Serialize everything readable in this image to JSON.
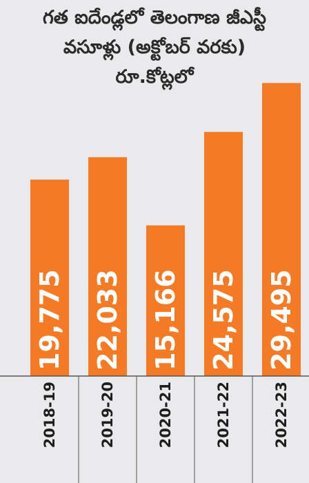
{
  "chart_data": {
    "type": "bar",
    "title": [
      "గత ఐదేండ్లలో తెలంగాణ జీఎస్టీ",
      "వసూళ్లు (అక్టోబర్ వరకు)",
      "రూ.కోట్లలో"
    ],
    "categories": [
      "2018-19",
      "2019-20",
      "2020-21",
      "2021-22",
      "2022-23"
    ],
    "values": [
      19775,
      22033,
      15166,
      24575,
      29495
    ],
    "value_labels": [
      "19,775",
      "22,033",
      "15,166",
      "24,575",
      "29,495"
    ],
    "ylim": [
      0,
      30700
    ],
    "grid": false,
    "bar_color": "#f47a25"
  }
}
